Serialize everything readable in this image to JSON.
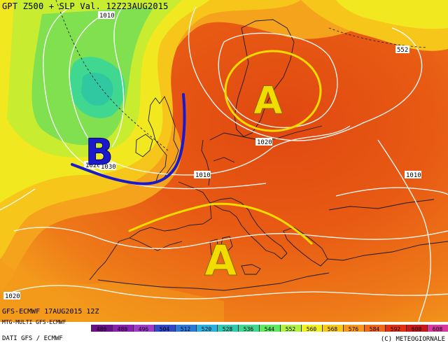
{
  "header": {
    "title": "GPT Z500 + SLP Val. 12Z23AUG2015"
  },
  "footer": {
    "run": "GFS-ECMWF 17AUG2015 12Z",
    "model": "MTG-MULTI GFS-ECMWF",
    "source": "DATI GFS / ECMWF",
    "copyright": "(C) METEOGIORNALE"
  },
  "isobar_labels": [
    "1010",
    "1020",
    "1010",
    "1010",
    "1020",
    "1020",
    "1030"
  ],
  "contour_label_552": "552",
  "pressure_systems": [
    {
      "letter": "A",
      "meaning": "high",
      "color": "#f2dc00"
    },
    {
      "letter": "B",
      "meaning": "low",
      "color": "#1a1acc"
    },
    {
      "letter": "A",
      "meaning": "high",
      "color": "#f2dc00"
    }
  ],
  "legend": {
    "values": [
      "480",
      "488",
      "496",
      "504",
      "512",
      "520",
      "528",
      "536",
      "544",
      "552",
      "560",
      "568",
      "576",
      "584",
      "592",
      "600",
      "608"
    ],
    "colors": [
      "#6a0f8a",
      "#8a1fb0",
      "#a03ac8",
      "#3048c8",
      "#2a78d8",
      "#28b0e0",
      "#30c8b0",
      "#40d890",
      "#60e860",
      "#b0f040",
      "#f0f020",
      "#f8c818",
      "#f89818",
      "#f06818",
      "#e03010",
      "#c81818",
      "#d838a0"
    ]
  }
}
